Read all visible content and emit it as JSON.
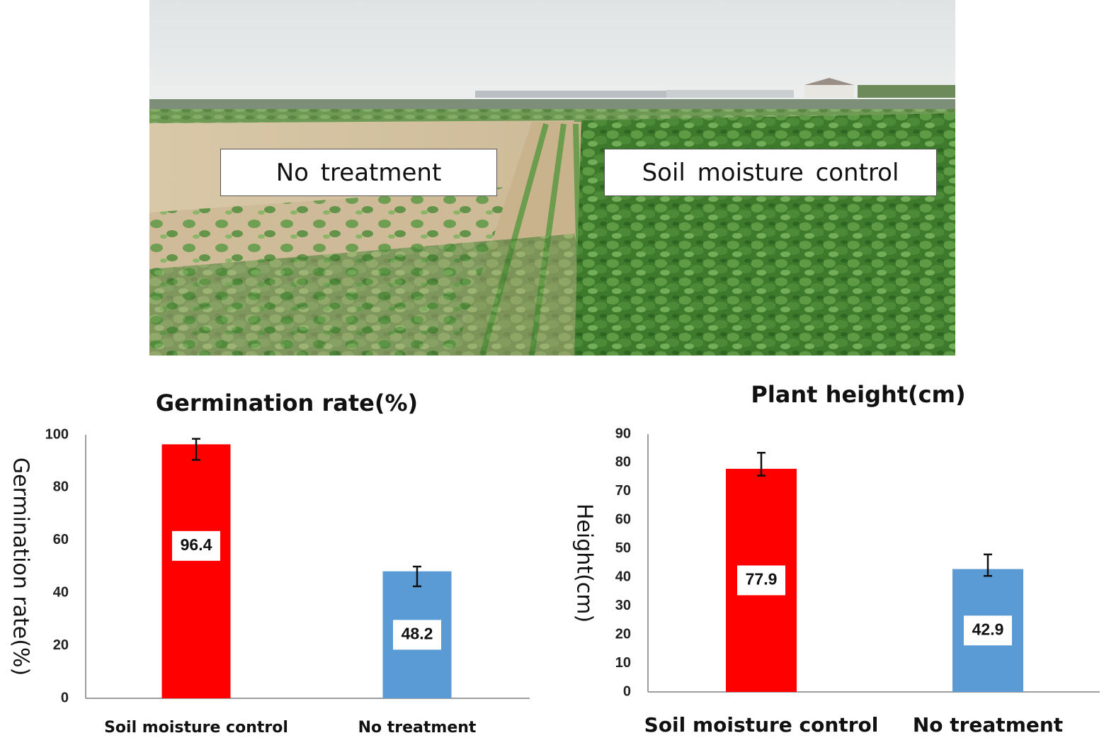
{
  "photo": {
    "label_left": "No  treatment",
    "label_right": "Soil  moisture  control"
  },
  "colors": {
    "soil_moisture_control": "#ff0000",
    "no_treatment": "#5b9bd5"
  },
  "chart_data": [
    {
      "type": "bar",
      "title": "Germination rate(%)",
      "xlabel": "",
      "ylabel": "Germination  rate(%)",
      "categories": [
        "Soil moisture control",
        "No treatment"
      ],
      "values": [
        96.4,
        48.2
      ],
      "error_upper": [
        98.5,
        50.0
      ],
      "error_lower": [
        90.5,
        42.5
      ],
      "data_labels": [
        "96.4",
        "48.2"
      ],
      "ylim": [
        0,
        100
      ],
      "yticks": [
        "0",
        "20",
        "40",
        "60",
        "80",
        "100"
      ],
      "grid": false,
      "legend": "none"
    },
    {
      "type": "bar",
      "title": "Plant height(cm)",
      "xlabel": "",
      "ylabel": "Height(cm)",
      "categories": [
        "Soil moisture control",
        "No treatment"
      ],
      "values": [
        77.9,
        42.9
      ],
      "error_upper": [
        83.5,
        48.0
      ],
      "error_lower": [
        75.5,
        40.5
      ],
      "data_labels": [
        "77.9",
        "42.9"
      ],
      "ylim": [
        0,
        90
      ],
      "yticks": [
        "0",
        "10",
        "20",
        "30",
        "40",
        "50",
        "60",
        "70",
        "80",
        "90"
      ],
      "grid": false,
      "legend": "none"
    }
  ]
}
